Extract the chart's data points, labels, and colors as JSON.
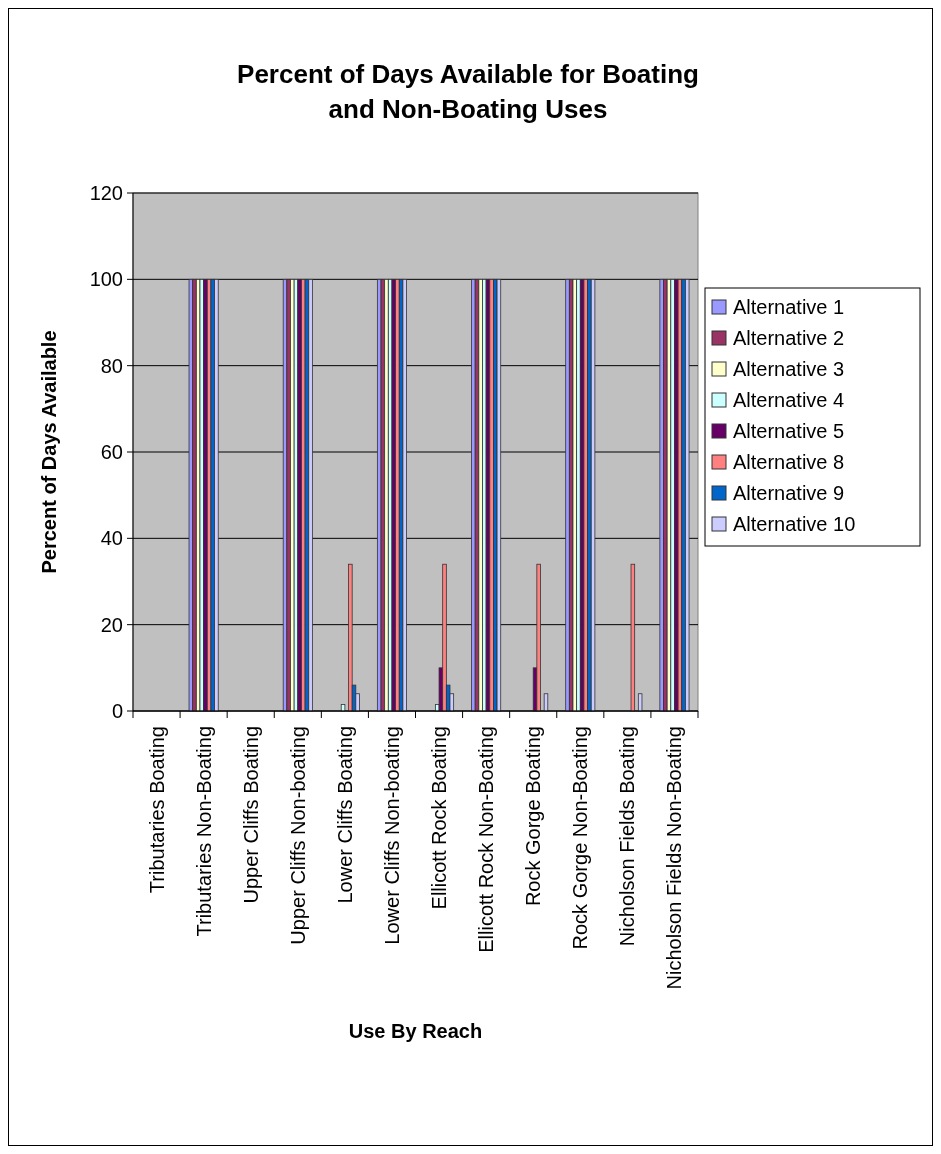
{
  "chart_data": {
    "type": "bar",
    "title": "Percent of Days Available for Boating and Non-Boating Uses",
    "xlabel": "Use By Reach",
    "ylabel": "Percent of Days Available",
    "categories": [
      "Tributaries Boating",
      "Tributaries Non-Boating",
      "Upper Cliffs Boating",
      "Upper Cliffs Non-boating",
      "Lower Cliffs Boating",
      "Lower Cliffs Non-boating",
      "Ellicott Rock Boating",
      "Ellicott Rock Non-Boating",
      "Rock Gorge Boating",
      "Rock Gorge Non-Boating",
      "Nicholson Fields Boating",
      "Nicholson Fields Non-Boating"
    ],
    "series": [
      {
        "name": "Alternative 1",
        "color": "#9999ff",
        "values": [
          0,
          100,
          0,
          100,
          0,
          100,
          0,
          100,
          0,
          100,
          0,
          100
        ]
      },
      {
        "name": "Alternative 2",
        "color": "#993366",
        "values": [
          0,
          100,
          0,
          100,
          0,
          100,
          0,
          100,
          0,
          100,
          0,
          100
        ]
      },
      {
        "name": "Alternative 3",
        "color": "#ffffcc",
        "values": [
          0,
          100,
          0,
          100,
          0,
          100,
          0,
          100,
          0,
          100,
          0,
          100
        ]
      },
      {
        "name": "Alternative 4",
        "color": "#ccffff",
        "values": [
          0,
          100,
          0,
          100,
          1.5,
          100,
          1.5,
          100,
          0,
          100,
          0,
          100
        ]
      },
      {
        "name": "Alternative 5",
        "color": "#660066",
        "values": [
          0,
          100,
          0,
          100,
          0,
          100,
          10,
          100,
          10,
          100,
          0,
          100
        ]
      },
      {
        "name": "Alternative 8",
        "color": "#ff8080",
        "values": [
          0,
          100,
          0,
          100,
          34,
          100,
          34,
          100,
          34,
          100,
          34,
          100
        ]
      },
      {
        "name": "Alternative 9",
        "color": "#0066cc",
        "values": [
          0,
          100,
          0,
          100,
          6,
          100,
          6,
          100,
          0,
          100,
          0,
          100
        ]
      },
      {
        "name": "Alternative 10",
        "color": "#ccccff",
        "values": [
          0,
          100,
          0,
          100,
          4,
          100,
          4,
          100,
          4,
          100,
          4,
          100
        ]
      }
    ],
    "ylim": [
      0,
      120
    ],
    "yticks": [
      0,
      20,
      40,
      60,
      80,
      100,
      120
    ],
    "grid": "y",
    "legend": "right"
  }
}
